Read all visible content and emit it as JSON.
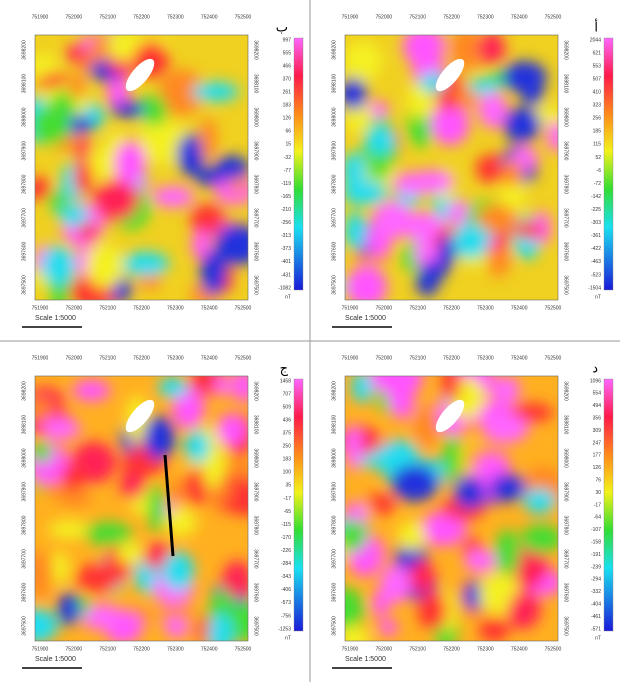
{
  "panels": [
    {
      "label": "ب",
      "x_labels": [
        "751900",
        "752000",
        "752100",
        "752200",
        "752300",
        "752400",
        "752500"
      ],
      "y_labels": [
        "3698200",
        "3698100",
        "3698000",
        "3697900",
        "3697800",
        "3697700",
        "3697600",
        "3697500"
      ],
      "colorbar": [
        "997",
        "555",
        "466",
        "370",
        "261",
        "183",
        "126",
        "66",
        "15",
        "-32",
        "-77",
        "-119",
        "-165",
        "-210",
        "-256",
        "-313",
        "-373",
        "-401",
        "-431",
        "-1082"
      ],
      "unit": "nT",
      "scale": "Scale 1:5000"
    },
    {
      "label": "أ",
      "x_labels": [
        "751900",
        "752000",
        "752100",
        "752200",
        "752300",
        "752400",
        "752500"
      ],
      "y_labels": [
        "3698200",
        "3698100",
        "3698000",
        "3697900",
        "3697800",
        "3697700",
        "3697600",
        "3697500"
      ],
      "colorbar": [
        "2044",
        "621",
        "553",
        "507",
        "410",
        "323",
        "256",
        "185",
        "115",
        "52",
        "-6",
        "-72",
        "-142",
        "-225",
        "-303",
        "-361",
        "-422",
        "-463",
        "-523",
        "-1504"
      ],
      "unit": "nT",
      "scale": "Scale 1:5000"
    },
    {
      "label": "ج",
      "x_labels": [
        "751900",
        "752000",
        "752100",
        "752200",
        "752300",
        "752400",
        "752500"
      ],
      "y_labels": [
        "3698200",
        "3698100",
        "3698000",
        "3697900",
        "3697800",
        "3697700",
        "3697600",
        "3697500"
      ],
      "colorbar": [
        "1458",
        "707",
        "509",
        "436",
        "375",
        "250",
        "183",
        "100",
        "35",
        "-17",
        "-65",
        "-115",
        "-170",
        "-226",
        "-284",
        "-343",
        "-406",
        "-573",
        "-756",
        "-1253"
      ],
      "unit": "nT",
      "scale": "Scale 1:5000"
    },
    {
      "label": "د",
      "x_labels": [
        "751900",
        "752000",
        "752100",
        "752200",
        "752300",
        "752400",
        "752500"
      ],
      "y_labels": [
        "3698200",
        "3698100",
        "3698000",
        "3697900",
        "3697800",
        "3697700",
        "3697600",
        "3697500"
      ],
      "colorbar": [
        "1096",
        "554",
        "494",
        "356",
        "309",
        "247",
        "177",
        "126",
        "76",
        "30",
        "-17",
        "-64",
        "-107",
        "-158",
        "-191",
        "-239",
        "-294",
        "-332",
        "-404",
        "-461",
        "-571"
      ],
      "unit": "nT",
      "scale": "Scale 1:5000"
    }
  ]
}
